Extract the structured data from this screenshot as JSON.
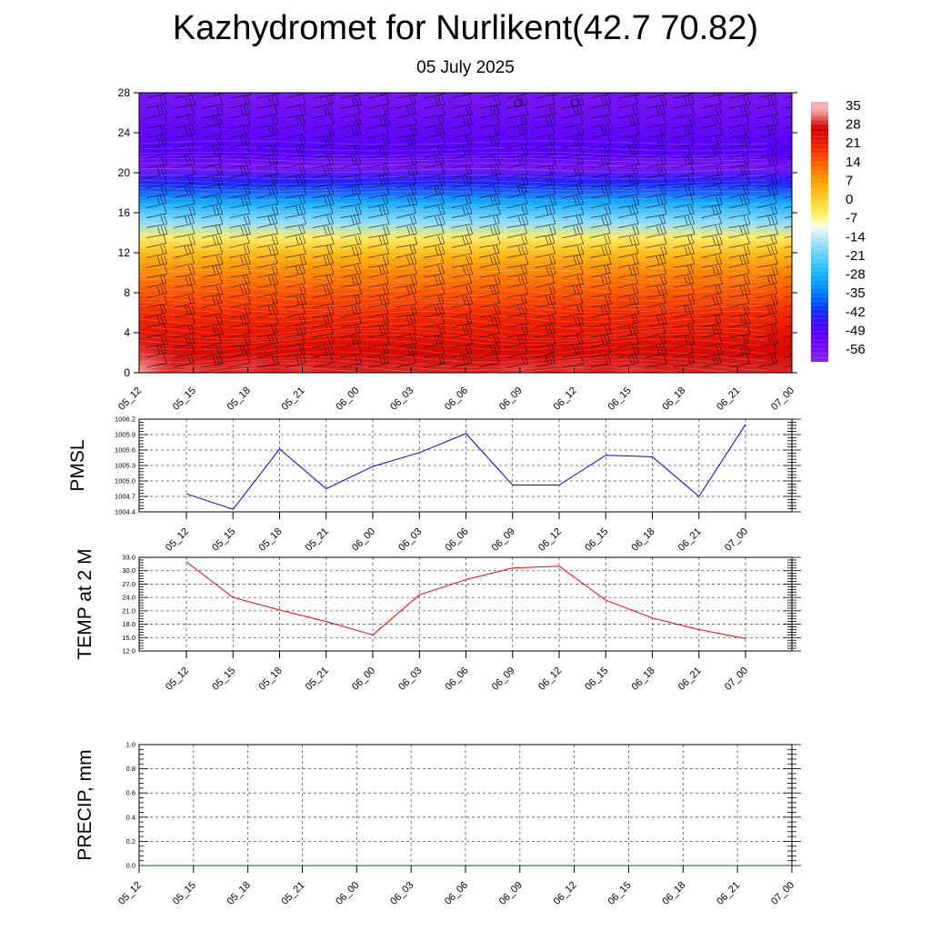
{
  "header": {
    "title": "Kazhydromet for Nurlikent(42.7 70.82)",
    "subtitle": "05 July 2025"
  },
  "colors": {
    "pmsl_line": "#0000ff",
    "temp_line": "#ff0000",
    "precip_line": "#006400",
    "grid": "#555555"
  },
  "chart_data": [
    {
      "type": "heatmap",
      "title": "",
      "xlabel": "",
      "ylabel": "",
      "x_tick_labels": [
        "05_12",
        "05_15",
        "05_18",
        "05_21",
        "06_00",
        "06_03",
        "06_06",
        "06_09",
        "06_12",
        "06_15",
        "06_18",
        "06_21",
        "07_00"
      ],
      "y_ticks": [
        0,
        4,
        8,
        12,
        16,
        20,
        24,
        28
      ],
      "ylim": [
        0,
        28
      ],
      "colorbar_labels": [
        35,
        28,
        21,
        14,
        7,
        0,
        -7,
        -14,
        -21,
        -28,
        -35,
        -42,
        -49,
        -56
      ],
      "temperature_by_level": [
        {
          "level": 0,
          "values": [
            33,
            30,
            31,
            31,
            28,
            27,
            29,
            31,
            31,
            30,
            29,
            28,
            27
          ]
        },
        {
          "level": 2,
          "values": [
            27,
            26,
            27,
            26,
            25,
            25,
            26,
            27,
            27,
            26,
            25,
            25,
            24
          ]
        },
        {
          "level": 4,
          "values": [
            24,
            23,
            23,
            23,
            22,
            22,
            23,
            24,
            24,
            23,
            23,
            22,
            22
          ]
        },
        {
          "level": 6,
          "values": [
            20,
            20,
            20,
            20,
            19,
            19,
            20,
            20,
            20,
            20,
            19,
            19,
            19
          ]
        },
        {
          "level": 8,
          "values": [
            15,
            15,
            15,
            15,
            15,
            15,
            15,
            15,
            15,
            15,
            15,
            15,
            15
          ]
        },
        {
          "level": 10,
          "values": [
            10,
            10,
            10,
            10,
            10,
            10,
            10,
            10,
            10,
            10,
            10,
            10,
            10
          ]
        },
        {
          "level": 12,
          "values": [
            3,
            3,
            3,
            3,
            3,
            3,
            3,
            3,
            3,
            3,
            3,
            3,
            3
          ]
        },
        {
          "level": 13.5,
          "values": [
            -5,
            -5,
            -5,
            -5,
            -5,
            -5,
            -5,
            -5,
            -5,
            -5,
            -5,
            -5,
            -5
          ]
        },
        {
          "level": 15,
          "values": [
            -18,
            -18,
            -18,
            -18,
            -18,
            -18,
            -18,
            -18,
            -18,
            -18,
            -18,
            -18,
            -18
          ]
        },
        {
          "level": 17,
          "values": [
            -30,
            -30,
            -30,
            -30,
            -30,
            -30,
            -30,
            -30,
            -30,
            -30,
            -30,
            -30,
            -30
          ]
        },
        {
          "level": 19,
          "values": [
            -45,
            -45,
            -45,
            -45,
            -45,
            -45,
            -45,
            -45,
            -45,
            -45,
            -45,
            -45,
            -45
          ]
        },
        {
          "level": 20.5,
          "values": [
            -60,
            -60,
            -60,
            -60,
            -60,
            -60,
            -60,
            -60,
            -60,
            -60,
            -60,
            -60,
            -60
          ]
        },
        {
          "level": 22,
          "values": [
            -52,
            -52,
            -52,
            -52,
            -52,
            -52,
            -52,
            -52,
            -52,
            -52,
            -52,
            -52,
            -52
          ]
        },
        {
          "level": 28,
          "values": [
            -60,
            -60,
            -60,
            -60,
            -60,
            -60,
            -60,
            -60,
            -60,
            -60,
            -60,
            -60,
            -60
          ]
        }
      ],
      "wind_barbs": "present at all levels and times"
    },
    {
      "type": "line",
      "title": "",
      "ylabel": "PMSL",
      "x_tick_labels": [
        "05_12",
        "05_15",
        "05_18",
        "05_21",
        "06_00",
        "06_03",
        "06_06",
        "06_09",
        "06_12",
        "06_15",
        "06_18",
        "06_21",
        "07_00"
      ],
      "y_tick_labels": [
        "1004.4",
        "1004.7",
        "1005.0",
        "1005.3",
        "1005.6",
        "1005.9",
        "1006.2"
      ],
      "ylim": [
        1004.4,
        1006.2
      ],
      "grid": true,
      "series": [
        {
          "values": [
            1004.75,
            1004.45,
            1005.62,
            1004.85,
            1005.28,
            1005.55,
            1005.92,
            1004.92,
            1004.92,
            1005.5,
            1005.47,
            1004.7,
            1006.1
          ]
        }
      ]
    },
    {
      "type": "line",
      "title": "",
      "ylabel": "TEMP at 2 M",
      "x_tick_labels": [
        "05_12",
        "05_15",
        "05_18",
        "05_21",
        "06_00",
        "06_03",
        "06_06",
        "06_09",
        "06_12",
        "06_15",
        "06_18",
        "06_21",
        "07_00"
      ],
      "y_tick_labels": [
        "12.0",
        "15.0",
        "18.0",
        "21.0",
        "24.0",
        "27.0",
        "30.0",
        "33.0"
      ],
      "ylim": [
        12,
        33
      ],
      "grid": true,
      "series": [
        {
          "values": [
            32,
            24,
            21.2,
            18.6,
            15.6,
            24.6,
            28,
            30.6,
            31,
            23.4,
            19.4,
            16.8,
            14.8
          ]
        }
      ]
    },
    {
      "type": "line",
      "title": "",
      "ylabel": "PRECIP, mm",
      "x_tick_labels": [
        "05_12",
        "05_15",
        "05_18",
        "05_21",
        "06_00",
        "06_03",
        "06_06",
        "06_09",
        "06_12",
        "06_15",
        "06_18",
        "06_21",
        "07_00"
      ],
      "y_tick_labels": [
        "0.0",
        "0.2",
        "0.4",
        "0.6",
        "0.8",
        "1.0"
      ],
      "ylim": [
        0,
        1
      ],
      "grid": true,
      "series": [
        {
          "values": [
            0,
            0,
            0,
            0,
            0,
            0,
            0,
            0,
            0,
            0,
            0,
            0,
            0
          ]
        }
      ]
    }
  ]
}
